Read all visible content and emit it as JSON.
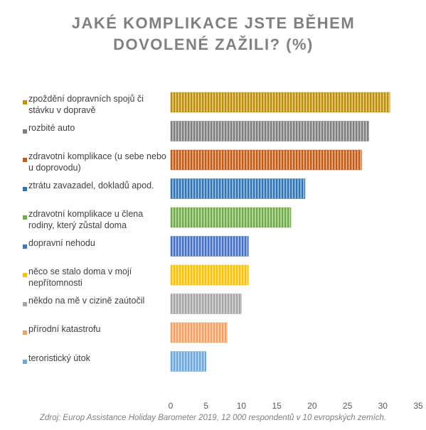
{
  "chart_data": {
    "type": "barh",
    "title": "JAKÉ KOMPLIKACE JSTE BĚHEM DOVOLENÉ ZAŽILI? (%)",
    "categories": [
      "zpoždění dopravních spojů či stávku v dopravě",
      "rozbité auto",
      "zdravotní komplikace (u sebe nebo u doprovodu)",
      "ztrátu zavazadel, dokladů apod.",
      "zdravotní komplikace u člena rodiny, který zůstal doma",
      "dopravní nehodu",
      "něco se stalo doma v mojí nepřítomnosti",
      "někdo na mě v cizině zaútočil",
      "přírodní katastrofu",
      "teroristický útok"
    ],
    "values": [
      31,
      28,
      27,
      19,
      17,
      11,
      11,
      10,
      8,
      5
    ],
    "colors": [
      "#bf9000",
      "#7f7f7f",
      "#c55a11",
      "#2e75b6",
      "#70ad47",
      "#4472c4",
      "#ffc000",
      "#a5a5a5",
      "#f4a060",
      "#6fa8dc"
    ],
    "xlim": [
      0,
      35
    ],
    "xticks": [
      0,
      5,
      10,
      15,
      20,
      25,
      30,
      35
    ],
    "grid": false,
    "note": "Zdroj: Europ Assistance Holiday Barometer 2019, 12 000 respondentů v 10 evropských zemích."
  }
}
